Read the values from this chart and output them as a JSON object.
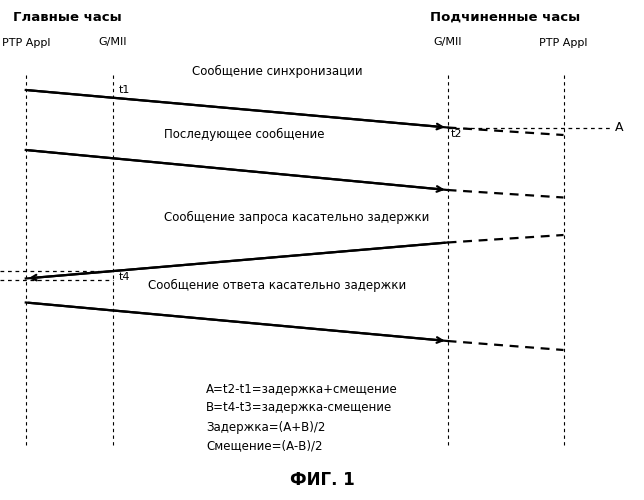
{
  "title_master": "Главные часы",
  "title_slave": "Подчиненные часы",
  "col_ptp_appl_master": 0.04,
  "col_gmii_master": 0.175,
  "col_gmii_slave": 0.695,
  "col_ptp_appl_slave": 0.875,
  "label_ptp_appl": "PTP Appl",
  "label_gmii": "G/MII",
  "msg1_label": "Сообщение синхронизации",
  "msg2_label": "Последующее сообщение",
  "msg3_label": "Сообщение запроса касательно задержки",
  "msg4_label": "Сообщение ответа касательно задержки",
  "formula_line1": "A=t2-t1=задержка+смещение",
  "formula_line2": "B=t4-t3=задержка-смещение",
  "formula_line3": "Задержка=(A+B)/2",
  "formula_line4": "Смещение=(A-В)/2",
  "fig_label": "ФИГ. 1",
  "background_color": "#ffffff",
  "line_color": "#000000"
}
